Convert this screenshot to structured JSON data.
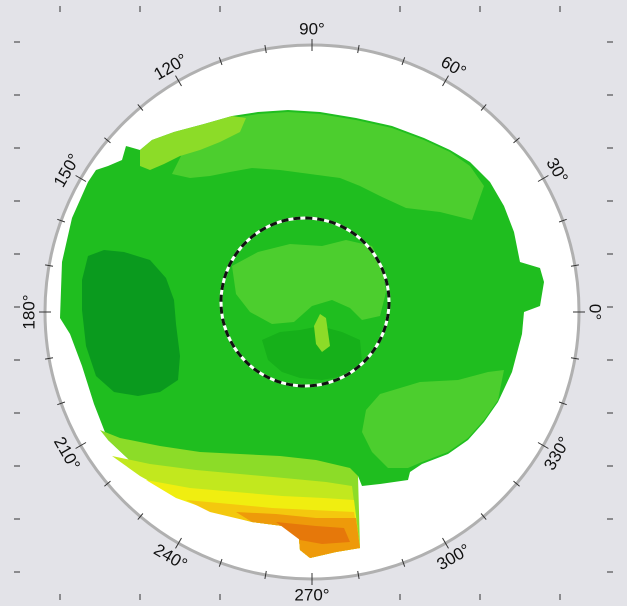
{
  "chart_data": {
    "type": "heatmap",
    "projection": "polar",
    "title": "",
    "angular_ticks_deg": [
      0,
      30,
      60,
      90,
      120,
      150,
      180,
      210,
      240,
      270,
      300,
      330
    ],
    "angular_labels": [
      "0°",
      "30°",
      "60°",
      "90°",
      "120°",
      "150°",
      "180°",
      "210°",
      "240°",
      "270°",
      "300°",
      "330°"
    ],
    "minor_tick_step_deg": 10,
    "dashed_inner_circle": true,
    "grid": false,
    "legend": "none"
  },
  "colors": {
    "background": "#e3e3e8",
    "plot_face": "#ffffff",
    "outline": "#b0b0b0",
    "green_dark": "#0a9a1e",
    "green": "#1fbe1f",
    "green_light": "#4cce2e",
    "green_yellow": "#8cdc28",
    "yellow_green": "#c2e81e",
    "yellow": "#f0ee10",
    "orange_yellow": "#f4c80e",
    "orange": "#ee9a0a",
    "dark_orange": "#e6780a"
  }
}
